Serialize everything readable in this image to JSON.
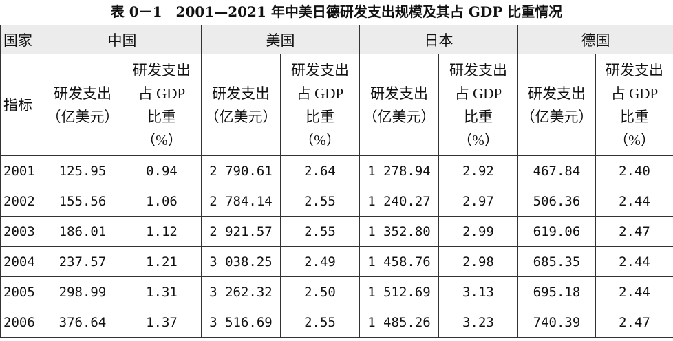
{
  "title": "表 0－1　2001—2021 年中美日德研发支出规模及其占 GDP 比重情况",
  "header": {
    "country_label": "国家",
    "indicator_label": "指标",
    "countries": [
      "中国",
      "美国",
      "日本",
      "德国"
    ],
    "spend": [
      "研发支出",
      "（亿美元）"
    ],
    "share": [
      "研发支出",
      "占 GDP",
      "比重",
      "（%）"
    ]
  },
  "table": {
    "rows": [
      [
        "2001",
        "125.95",
        "0.94",
        "2 790.61",
        "2.64",
        "1 278.94",
        "2.92",
        "467.84",
        "2.40"
      ],
      [
        "2002",
        "155.56",
        "1.06",
        "2 784.14",
        "2.55",
        "1 240.27",
        "2.97",
        "506.36",
        "2.44"
      ],
      [
        "2003",
        "186.01",
        "1.12",
        "2 921.57",
        "2.55",
        "1 352.80",
        "2.99",
        "619.06",
        "2.47"
      ],
      [
        "2004",
        "237.57",
        "1.21",
        "3 038.25",
        "2.49",
        "1 458.76",
        "2.98",
        "685.35",
        "2.44"
      ],
      [
        "2005",
        "298.99",
        "1.31",
        "3 262.32",
        "2.50",
        "1 512.69",
        "3.13",
        "695.18",
        "2.44"
      ],
      [
        "2006",
        "376.64",
        "1.37",
        "3 516.69",
        "2.55",
        "1 485.26",
        "3.23",
        "740.39",
        "2.47"
      ]
    ]
  }
}
